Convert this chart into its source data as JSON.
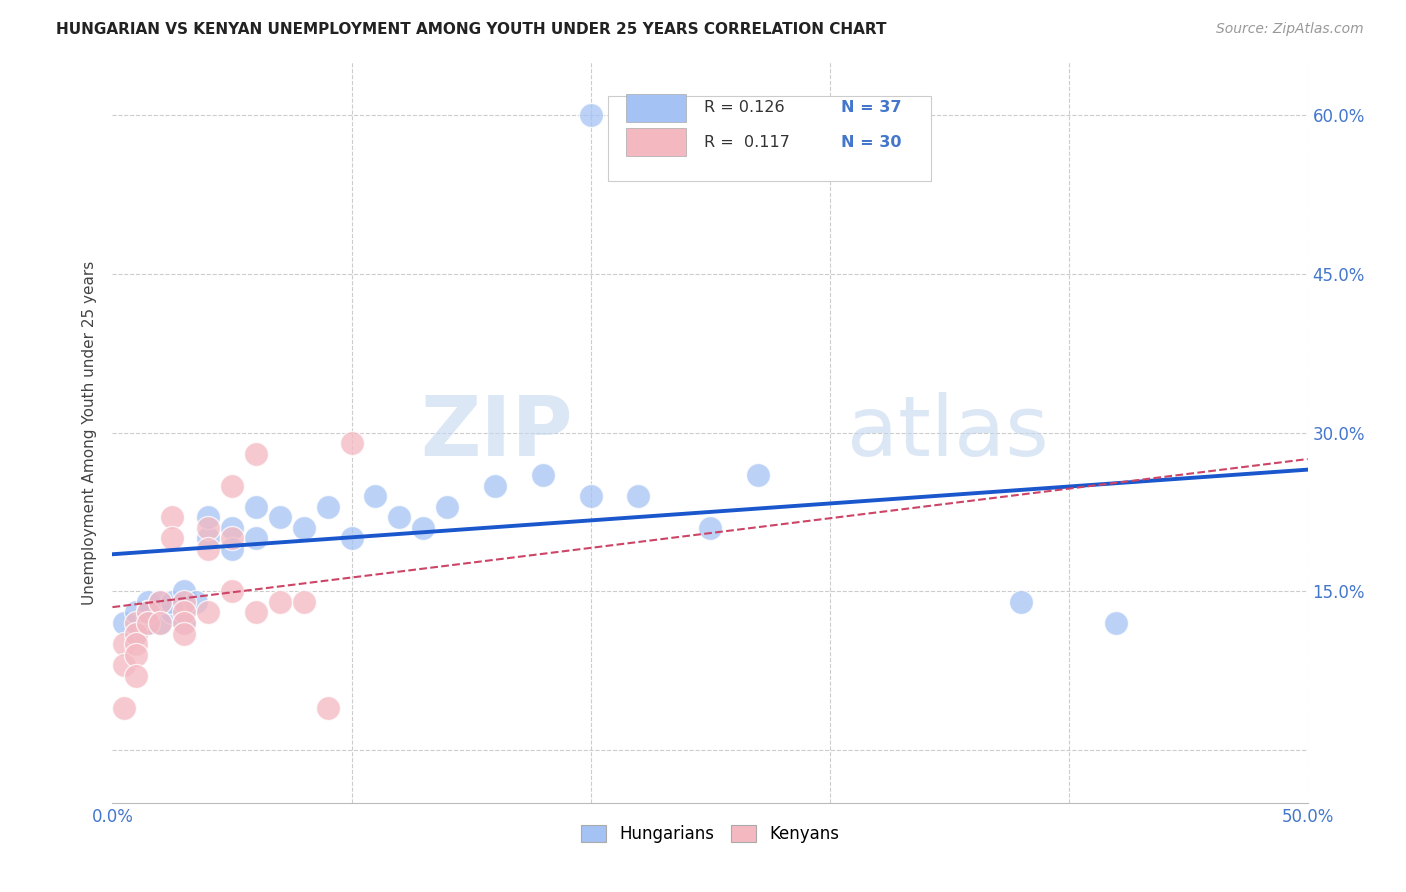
{
  "title": "HUNGARIAN VS KENYAN UNEMPLOYMENT AMONG YOUTH UNDER 25 YEARS CORRELATION CHART",
  "source": "Source: ZipAtlas.com",
  "ylabel": "Unemployment Among Youth under 25 years",
  "xlim": [
    0.0,
    0.5
  ],
  "ylim": [
    -0.05,
    0.65
  ],
  "xticks": [
    0.0,
    0.1,
    0.2,
    0.3,
    0.4,
    0.5
  ],
  "xticklabels": [
    "0.0%",
    "",
    "",
    "",
    "",
    "50.0%"
  ],
  "yticks_right": [
    0.0,
    0.15,
    0.3,
    0.45,
    0.6
  ],
  "yticklabels_right": [
    "",
    "15.0%",
    "30.0%",
    "45.0%",
    "60.0%"
  ],
  "background_color": "#ffffff",
  "grid_color": "#cccccc",
  "hungarian_color": "#a4c2f4",
  "kenyan_color": "#f4b8c1",
  "hungarian_line_color": "#1a56cc",
  "kenyan_line_color": "#cc4466",
  "legend_R_hun": "0.126",
  "legend_N_hun": "37",
  "legend_R_ken": "0.117",
  "legend_N_ken": "30",
  "watermark_zip": "ZIP",
  "watermark_atlas": "atlas",
  "hun_line_start_y": 0.185,
  "hun_line_end_y": 0.265,
  "ken_line_start_y": 0.135,
  "ken_line_end_y": 0.275,
  "hungarian_x": [
    0.005,
    0.01,
    0.01,
    0.015,
    0.015,
    0.015,
    0.015,
    0.02,
    0.02,
    0.025,
    0.025,
    0.03,
    0.03,
    0.035,
    0.04,
    0.04,
    0.05,
    0.05,
    0.06,
    0.06,
    0.07,
    0.08,
    0.09,
    0.1,
    0.11,
    0.12,
    0.13,
    0.14,
    0.16,
    0.18,
    0.2,
    0.22,
    0.25,
    0.27,
    0.38,
    0.42,
    0.2
  ],
  "hungarian_y": [
    0.12,
    0.13,
    0.11,
    0.12,
    0.14,
    0.13,
    0.12,
    0.14,
    0.12,
    0.13,
    0.14,
    0.15,
    0.12,
    0.14,
    0.2,
    0.22,
    0.21,
    0.19,
    0.23,
    0.2,
    0.22,
    0.21,
    0.23,
    0.2,
    0.24,
    0.22,
    0.21,
    0.23,
    0.25,
    0.26,
    0.24,
    0.24,
    0.21,
    0.26,
    0.14,
    0.12,
    0.6
  ],
  "kenyan_x": [
    0.005,
    0.005,
    0.005,
    0.01,
    0.01,
    0.01,
    0.01,
    0.01,
    0.015,
    0.015,
    0.02,
    0.02,
    0.025,
    0.025,
    0.03,
    0.03,
    0.03,
    0.03,
    0.04,
    0.04,
    0.04,
    0.05,
    0.05,
    0.05,
    0.06,
    0.06,
    0.07,
    0.08,
    0.09,
    0.1
  ],
  "kenyan_y": [
    0.1,
    0.08,
    0.04,
    0.12,
    0.11,
    0.1,
    0.09,
    0.07,
    0.13,
    0.12,
    0.14,
    0.12,
    0.22,
    0.2,
    0.14,
    0.13,
    0.12,
    0.11,
    0.21,
    0.19,
    0.13,
    0.25,
    0.2,
    0.15,
    0.28,
    0.13,
    0.14,
    0.14,
    0.04,
    0.29
  ]
}
